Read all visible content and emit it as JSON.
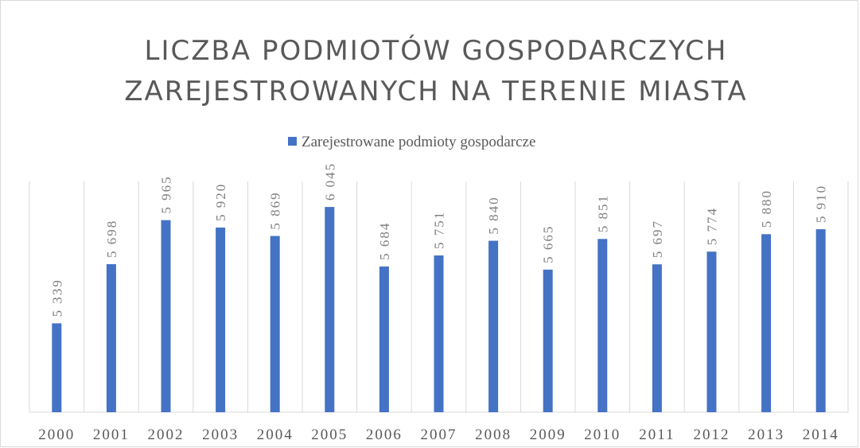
{
  "chart_data": {
    "type": "bar",
    "title": [
      "LICZBA PODMIOTÓW GOSPODARCZYCH",
      "ZAREJESTROWANYCH NA TERENIE MIASTA"
    ],
    "categories": [
      "2000",
      "2001",
      "2002",
      "2003",
      "2004",
      "2005",
      "2006",
      "2007",
      "2008",
      "2009",
      "2010",
      "2011",
      "2012",
      "2013",
      "2014"
    ],
    "series": [
      {
        "name": "Zarejestrowane podmioty gospodarcze",
        "color": "#4472c4",
        "values": [
          5339,
          5698,
          5965,
          5920,
          5869,
          6045,
          5684,
          5751,
          5840,
          5665,
          5851,
          5697,
          5774,
          5880,
          5910
        ],
        "value_labels": [
          "5 339",
          "5 698",
          "5 965",
          "5 920",
          "5 869",
          "6 045",
          "5 684",
          "5 751",
          "5 840",
          "5 665",
          "5 851",
          "5 697",
          "5 774",
          "5 880",
          "5 910"
        ]
      }
    ],
    "ylim": [
      4800,
      6200
    ],
    "legend": "top"
  }
}
